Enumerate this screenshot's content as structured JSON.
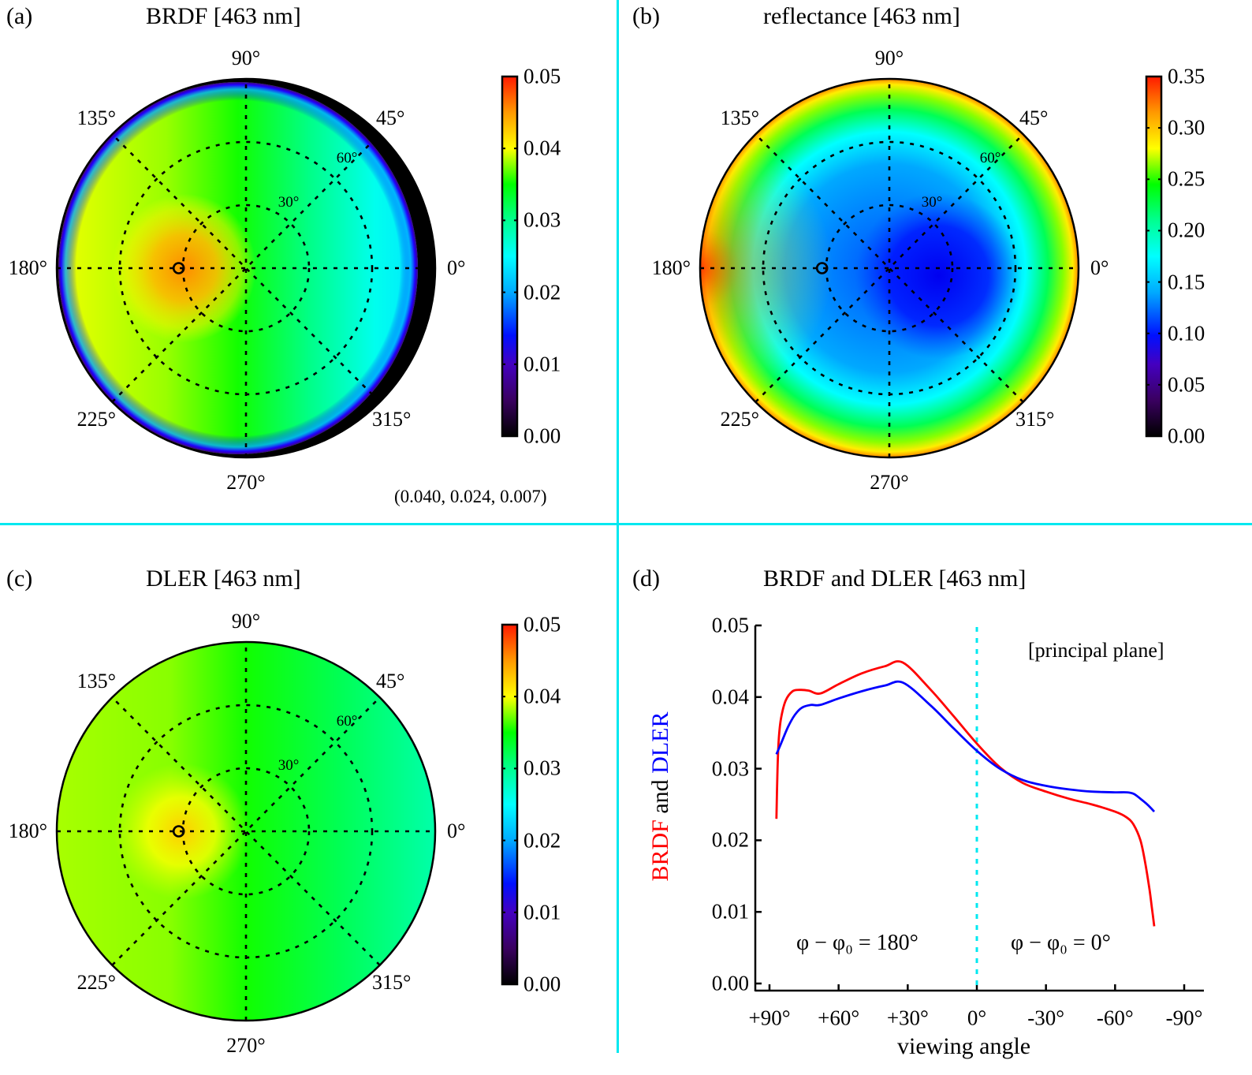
{
  "panels": {
    "a": {
      "label": "(a)",
      "title": "BRDF  [463 nm]",
      "note": "(0.040, 0.024, 0.007)",
      "colorbar": {
        "min": 0.0,
        "max": 0.05,
        "ticks": [
          "0.00",
          "0.01",
          "0.02",
          "0.03",
          "0.04",
          "0.05"
        ]
      }
    },
    "b": {
      "label": "(b)",
      "title": "reflectance  [463 nm]",
      "colorbar": {
        "min": 0.0,
        "max": 0.35,
        "ticks": [
          "0.00",
          "0.05",
          "0.10",
          "0.15",
          "0.20",
          "0.25",
          "0.30",
          "0.35"
        ]
      }
    },
    "c": {
      "label": "(c)",
      "title": "DLER  [463 nm]",
      "colorbar": {
        "min": 0.0,
        "max": 0.05,
        "ticks": [
          "0.00",
          "0.01",
          "0.02",
          "0.03",
          "0.04",
          "0.05"
        ]
      }
    },
    "d": {
      "label": "(d)",
      "title": "BRDF and DLER [463 nm]",
      "annotation": "[principal plane]",
      "left_region": "φ − φ₀ = 180°",
      "right_region": "φ − φ₀ = 0°",
      "ylabel_parts": [
        "BRDF",
        " and ",
        "DLER"
      ]
    }
  },
  "polar_axes": {
    "azimuth_labels": [
      "0°",
      "45°",
      "90°",
      "135°",
      "180°",
      "225°",
      "270°",
      "315°"
    ],
    "ring_labels": [
      "30°",
      "60°"
    ],
    "sun": {
      "zenith_deg": 32,
      "azimuth_deg": 180
    }
  },
  "colors": {
    "brdf": "#ff0000",
    "dler": "#0000ff",
    "separator": "#00e8f0",
    "zero_line": "#00e8f0"
  },
  "chart_data": [
    {
      "type": "heatmap",
      "projection": "polar",
      "title": "BRDF  [463 nm]",
      "colormap": "rainbow",
      "value_range": [
        0.0,
        0.05
      ],
      "description": "maximum ~0.045 near backscatter (azimuth 180°, zenith ~35°), ~0.035 at nadir, decreasing to ~0.02 toward azimuth 0° at large zenith; falls to 0 near 90° zenith on the 0° side"
    },
    {
      "type": "heatmap",
      "projection": "polar",
      "title": "reflectance  [463 nm]",
      "colormap": "rainbow",
      "value_range": [
        0.0,
        0.35
      ],
      "description": "minimum ~0.09 at azimuth 0°, zenith ~30-40°; rising to ~0.3 at the limb, strongest near azimuth 180°"
    },
    {
      "type": "heatmap",
      "projection": "polar",
      "title": "DLER  [463 nm]",
      "colormap": "rainbow",
      "value_range": [
        0.0,
        0.05
      ],
      "description": "maximum ~0.042 near azimuth 180°, zenith ~35°; ~0.033 at nadir; ~0.025 toward azimuth 0° limb"
    },
    {
      "type": "line",
      "title": "BRDF and DLER [463 nm]",
      "xlabel": "viewing angle",
      "ylabel": "BRDF and DLER",
      "xlim": [
        90,
        -90
      ],
      "ylim": [
        0.0,
        0.05
      ],
      "xticks": [
        90,
        60,
        30,
        0,
        -30,
        -60,
        -90
      ],
      "xtick_labels": [
        "+90°",
        "+60°",
        "+30°",
        "0°",
        "-30°",
        "-60°",
        "-90°"
      ],
      "yticks": [
        0.0,
        0.01,
        0.02,
        0.03,
        0.04,
        0.05
      ],
      "ytick_labels": [
        "0.00",
        "0.01",
        "0.02",
        "0.03",
        "0.04",
        "0.05"
      ],
      "grid": false,
      "vline": 0,
      "series": [
        {
          "name": "BRDF",
          "color": "#ff0000",
          "x": [
            87,
            86.5,
            86,
            85,
            83,
            80,
            77,
            73,
            68,
            60,
            50,
            40,
            32,
            20,
            10,
            0,
            -10,
            -20,
            -30,
            -40,
            -50,
            -60,
            -65,
            -68,
            -71,
            -73,
            -75,
            -76,
            -77
          ],
          "y": [
            0.023,
            0.03,
            0.034,
            0.037,
            0.0395,
            0.0408,
            0.041,
            0.0409,
            0.0405,
            0.0418,
            0.0433,
            0.0443,
            0.0448,
            0.041,
            0.0373,
            0.0335,
            0.0302,
            0.028,
            0.0268,
            0.0258,
            0.025,
            0.024,
            0.0232,
            0.0222,
            0.02,
            0.017,
            0.013,
            0.0105,
            0.008
          ]
        },
        {
          "name": "DLER",
          "color": "#0000ff",
          "x": [
            87,
            85,
            82,
            79,
            76,
            72,
            68,
            60,
            50,
            40,
            32,
            20,
            10,
            0,
            -10,
            -20,
            -30,
            -40,
            -50,
            -60,
            -65,
            -68,
            -71,
            -74,
            -77
          ],
          "y": [
            0.032,
            0.0335,
            0.0358,
            0.0375,
            0.0385,
            0.0389,
            0.0389,
            0.0398,
            0.0408,
            0.0416,
            0.042,
            0.0388,
            0.0356,
            0.0325,
            0.03,
            0.0284,
            0.0276,
            0.0271,
            0.0268,
            0.0267,
            0.0267,
            0.0265,
            0.0258,
            0.025,
            0.024
          ]
        }
      ]
    }
  ]
}
